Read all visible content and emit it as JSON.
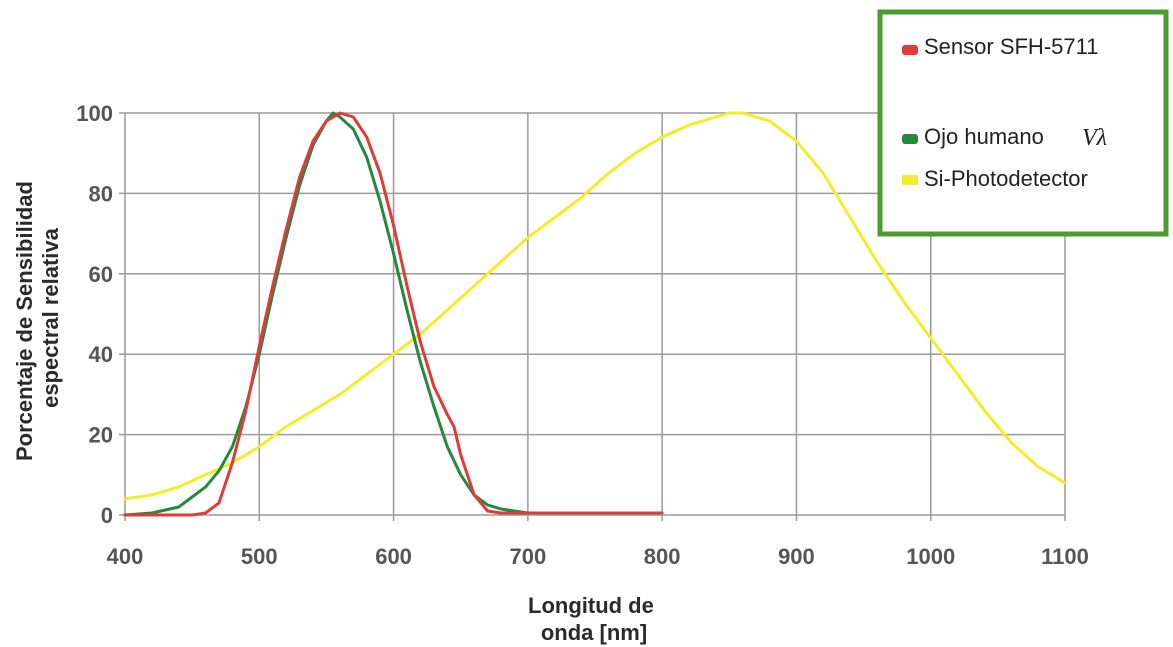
{
  "chart_data": {
    "type": "line",
    "xlabel": [
      "Longitud de",
      "onda [nm]"
    ],
    "ylabel": [
      "Porcentaje de Sensibilidad",
      "espectral relativa"
    ],
    "xlim": [
      400,
      1100
    ],
    "ylim": [
      0,
      100
    ],
    "x_ticks": [
      "400",
      "500",
      "600",
      "700",
      "800",
      "900",
      "1000",
      "1100"
    ],
    "y_ticks": [
      "0",
      "20",
      "40",
      "60",
      "80",
      "100"
    ],
    "grid": true,
    "legend_position": "top-right",
    "series": [
      {
        "name": "Sensor SFH-5711",
        "symbol": "",
        "color": "#e03a3a",
        "x": [
          400,
          450,
          460,
          470,
          480,
          490,
          500,
          510,
          520,
          530,
          540,
          550,
          560,
          570,
          580,
          590,
          600,
          610,
          620,
          630,
          640,
          645,
          650,
          660,
          670,
          680,
          700,
          750,
          800
        ],
        "y": [
          0,
          0,
          0.5,
          3,
          13,
          26,
          42,
          57,
          71,
          84,
          93,
          98,
          100,
          99,
          94,
          85,
          72,
          57,
          43,
          32,
          25,
          22,
          15,
          5,
          1,
          0.5,
          0.5,
          0.5,
          0.5
        ]
      },
      {
        "name": "Ojo humano",
        "symbol": "Vλ",
        "color": "#238a3c",
        "x": [
          400,
          420,
          440,
          460,
          470,
          480,
          490,
          500,
          510,
          520,
          530,
          540,
          550,
          555,
          560,
          570,
          580,
          590,
          600,
          610,
          620,
          630,
          640,
          650,
          660,
          670,
          680,
          690,
          700,
          720
        ],
        "y": [
          0,
          0.5,
          2,
          7,
          11,
          17,
          27,
          40,
          55,
          69,
          82,
          92,
          98,
          100,
          99,
          96,
          89,
          78,
          65,
          51,
          38,
          27,
          17,
          10,
          5,
          2.5,
          1.5,
          1,
          0.5,
          0.5
        ]
      },
      {
        "name": "Si-Photodetector",
        "symbol": "",
        "color": "#f4ec2a",
        "x": [
          400,
          420,
          440,
          460,
          480,
          500,
          520,
          540,
          560,
          580,
          600,
          620,
          640,
          660,
          680,
          700,
          720,
          740,
          760,
          780,
          800,
          820,
          840,
          850,
          860,
          880,
          900,
          920,
          940,
          960,
          980,
          1000,
          1020,
          1040,
          1060,
          1080,
          1100
        ],
        "y": [
          4,
          5,
          7,
          10,
          13,
          17,
          22,
          26,
          30,
          35,
          40,
          45,
          51,
          57,
          63,
          69,
          74,
          79,
          85,
          90,
          94,
          97,
          99,
          100,
          100,
          98,
          93,
          85,
          74,
          63,
          53,
          44,
          35,
          26,
          18,
          12,
          8
        ]
      }
    ]
  }
}
